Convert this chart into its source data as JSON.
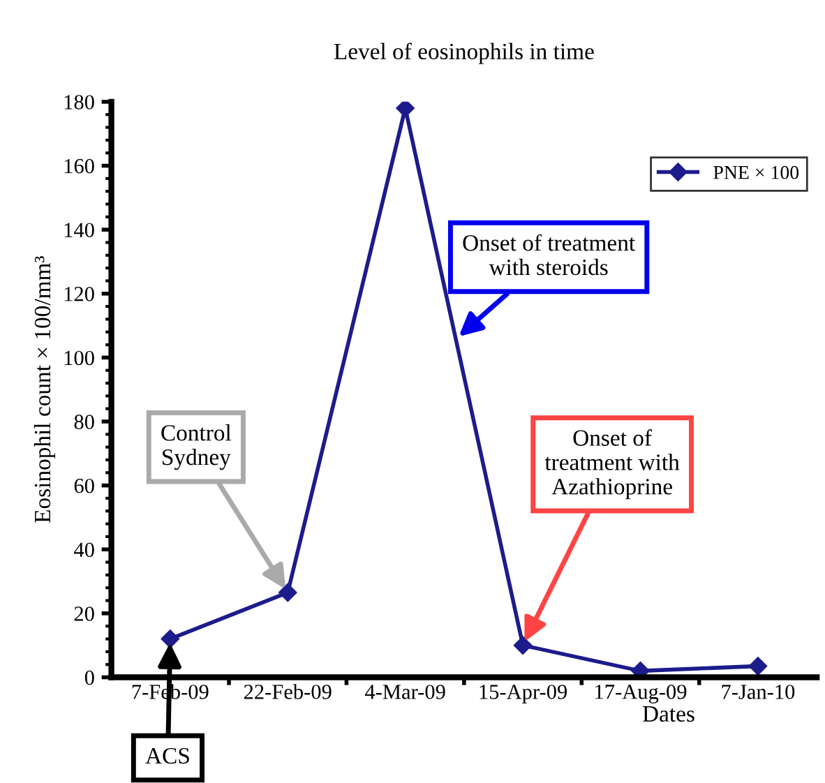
{
  "chart_data": {
    "type": "line",
    "title": "Level of eosinophils in time",
    "xlabel": "Dates",
    "ylabel": "Eosinophil count × 100/mm³",
    "categories": [
      "7-Feb-09",
      "22-Feb-09",
      "4-Mar-09",
      "15-Apr-09",
      "17-Aug-09",
      "7-Jan-10"
    ],
    "series": [
      {
        "name": "PNE × 100",
        "color": "#1c1c8c",
        "values": [
          12,
          26.5,
          178,
          10,
          2,
          3.5
        ]
      }
    ],
    "ylim": [
      0,
      180
    ],
    "yticks": [
      0,
      20,
      40,
      60,
      80,
      100,
      120,
      140,
      160,
      180
    ],
    "marker": "diamond",
    "line_style": "solid",
    "legend": "top right",
    "grid": false,
    "annotations": [
      {
        "text": "ACS",
        "x": "7-Feb-09",
        "y": 12
      },
      {
        "text": "Control\nSydney",
        "x": "22-Feb-09",
        "y": 26.5
      },
      "Onset of treatment\nwith steroids",
      {
        "text": "Onset of\ntreatment with\nAzathioprine",
        "x": "15-Apr-09",
        "y": 10
      }
    ]
  }
}
